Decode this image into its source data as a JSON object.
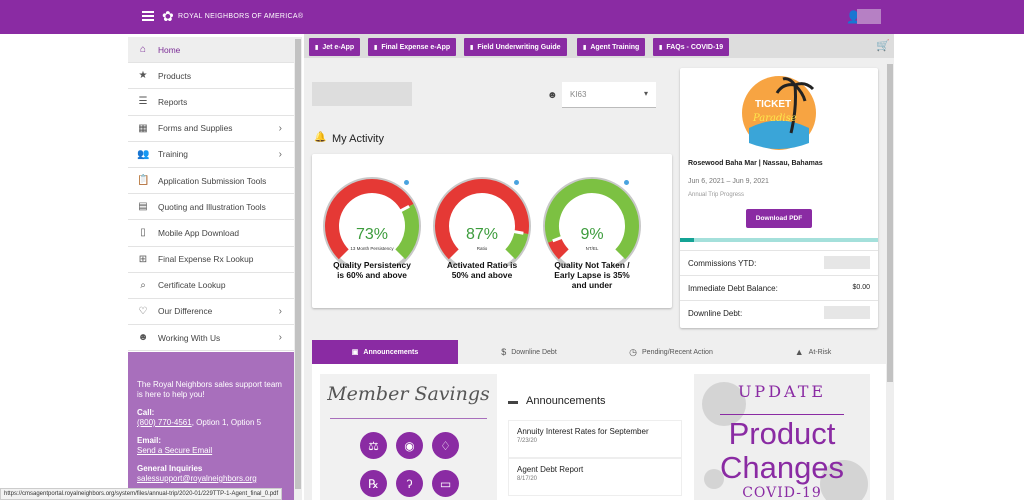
{
  "header": {
    "brand": "ROYAL NEIGHBORS OF AMERICA®"
  },
  "sidebar": {
    "items": [
      {
        "label": "Home",
        "icon": "home-icon",
        "glyph": "⌂"
      },
      {
        "label": "Products",
        "icon": "star-icon",
        "glyph": "★"
      },
      {
        "label": "Reports",
        "icon": "list-icon",
        "glyph": "☰"
      },
      {
        "label": "Forms and Supplies",
        "icon": "grid-icon",
        "glyph": "▦"
      },
      {
        "label": "Training",
        "icon": "people-icon",
        "glyph": "👥"
      },
      {
        "label": "Application Submission Tools",
        "icon": "clipboard-icon",
        "glyph": "📋"
      },
      {
        "label": "Quoting and Illustration Tools",
        "icon": "calculator-icon",
        "glyph": "▤"
      },
      {
        "label": "Mobile App Download",
        "icon": "phone-icon",
        "glyph": "▯"
      },
      {
        "label": "Final Expense Rx Lookup",
        "icon": "plus-box-icon",
        "glyph": "⊞"
      },
      {
        "label": "Certificate Lookup",
        "icon": "search-icon",
        "glyph": "⌕"
      },
      {
        "label": "Our Difference",
        "icon": "heart-icon",
        "glyph": "♡"
      },
      {
        "label": "Working With Us",
        "icon": "smile-icon",
        "glyph": "☻"
      }
    ],
    "support": {
      "intro": "The Royal Neighbors sales support team is here to help you!",
      "call_label": "Call:",
      "phone": "(800) 770-4561",
      "phone_suffix": ", Option 1, Option 5",
      "email_label": "Email:",
      "email_link": "Send a Secure Email",
      "general_label": "General Inquiries",
      "general_email": "salessupport@royalneighbors.org"
    }
  },
  "quick_links": [
    "Jet e-App",
    "Final Expense e-App",
    "Field Underwriting Guide",
    "Agent Training",
    "FAQs - COVID-19"
  ],
  "agent_select": {
    "value": "KI63"
  },
  "activity": {
    "title": "My Activity",
    "gauges": [
      {
        "value": "73%",
        "sub": "13 Month Persistency",
        "caption1": "Quality Persistency",
        "caption2": "is 60% and above",
        "caption3": "",
        "pct": 0.73
      },
      {
        "value": "87%",
        "sub": "Ratio",
        "caption1": "Activated Ratio is",
        "caption2": "50% and above",
        "caption3": "",
        "pct": 0.87
      },
      {
        "value": "9%",
        "sub": "NT/EL",
        "caption1": "Quality Not Taken /",
        "caption2": "Early Lapse is 35%",
        "caption3": "and under",
        "pct": 0.09
      }
    ]
  },
  "trip": {
    "title": "Rosewood Baha Mar | Nassau, Bahamas",
    "dates": "Jun 6, 2021 – Jun 9, 2021",
    "progress_label": "Annual Trip Progress",
    "download": "Download PDF",
    "progress": 0.07,
    "logo_line1": "TICKET",
    "logo_line2": "Paradise"
  },
  "summary": [
    {
      "label": "Commissions YTD:",
      "value": ""
    },
    {
      "label": "Immediate Debt Balance:",
      "value": "$0.00"
    },
    {
      "label": "Downline Debt:",
      "value": ""
    }
  ],
  "tabs": [
    "Announcements",
    "Downline Debt",
    "Pending/Recent Action",
    "At-Risk"
  ],
  "member_savings": {
    "title": "Member Savings"
  },
  "announcements": {
    "title": "Announcements",
    "items": [
      {
        "title": "Annuity Interest Rates for September",
        "date": "7/23/20"
      },
      {
        "title": "Agent Debt Report",
        "date": "8/17/20"
      }
    ]
  },
  "update_card": {
    "line1": "UPDATE",
    "line2": "Product",
    "line3": "Changes",
    "line4": "COVID-19"
  },
  "status_url": "https://cmsagentportal.royalneighbors.org/system/files/annual-trip/2020-01/229TTP-1-Agent_final_0.pdf",
  "colors": {
    "brand": "#8a2ba3",
    "green": "#7cc142",
    "red": "#e53935"
  }
}
